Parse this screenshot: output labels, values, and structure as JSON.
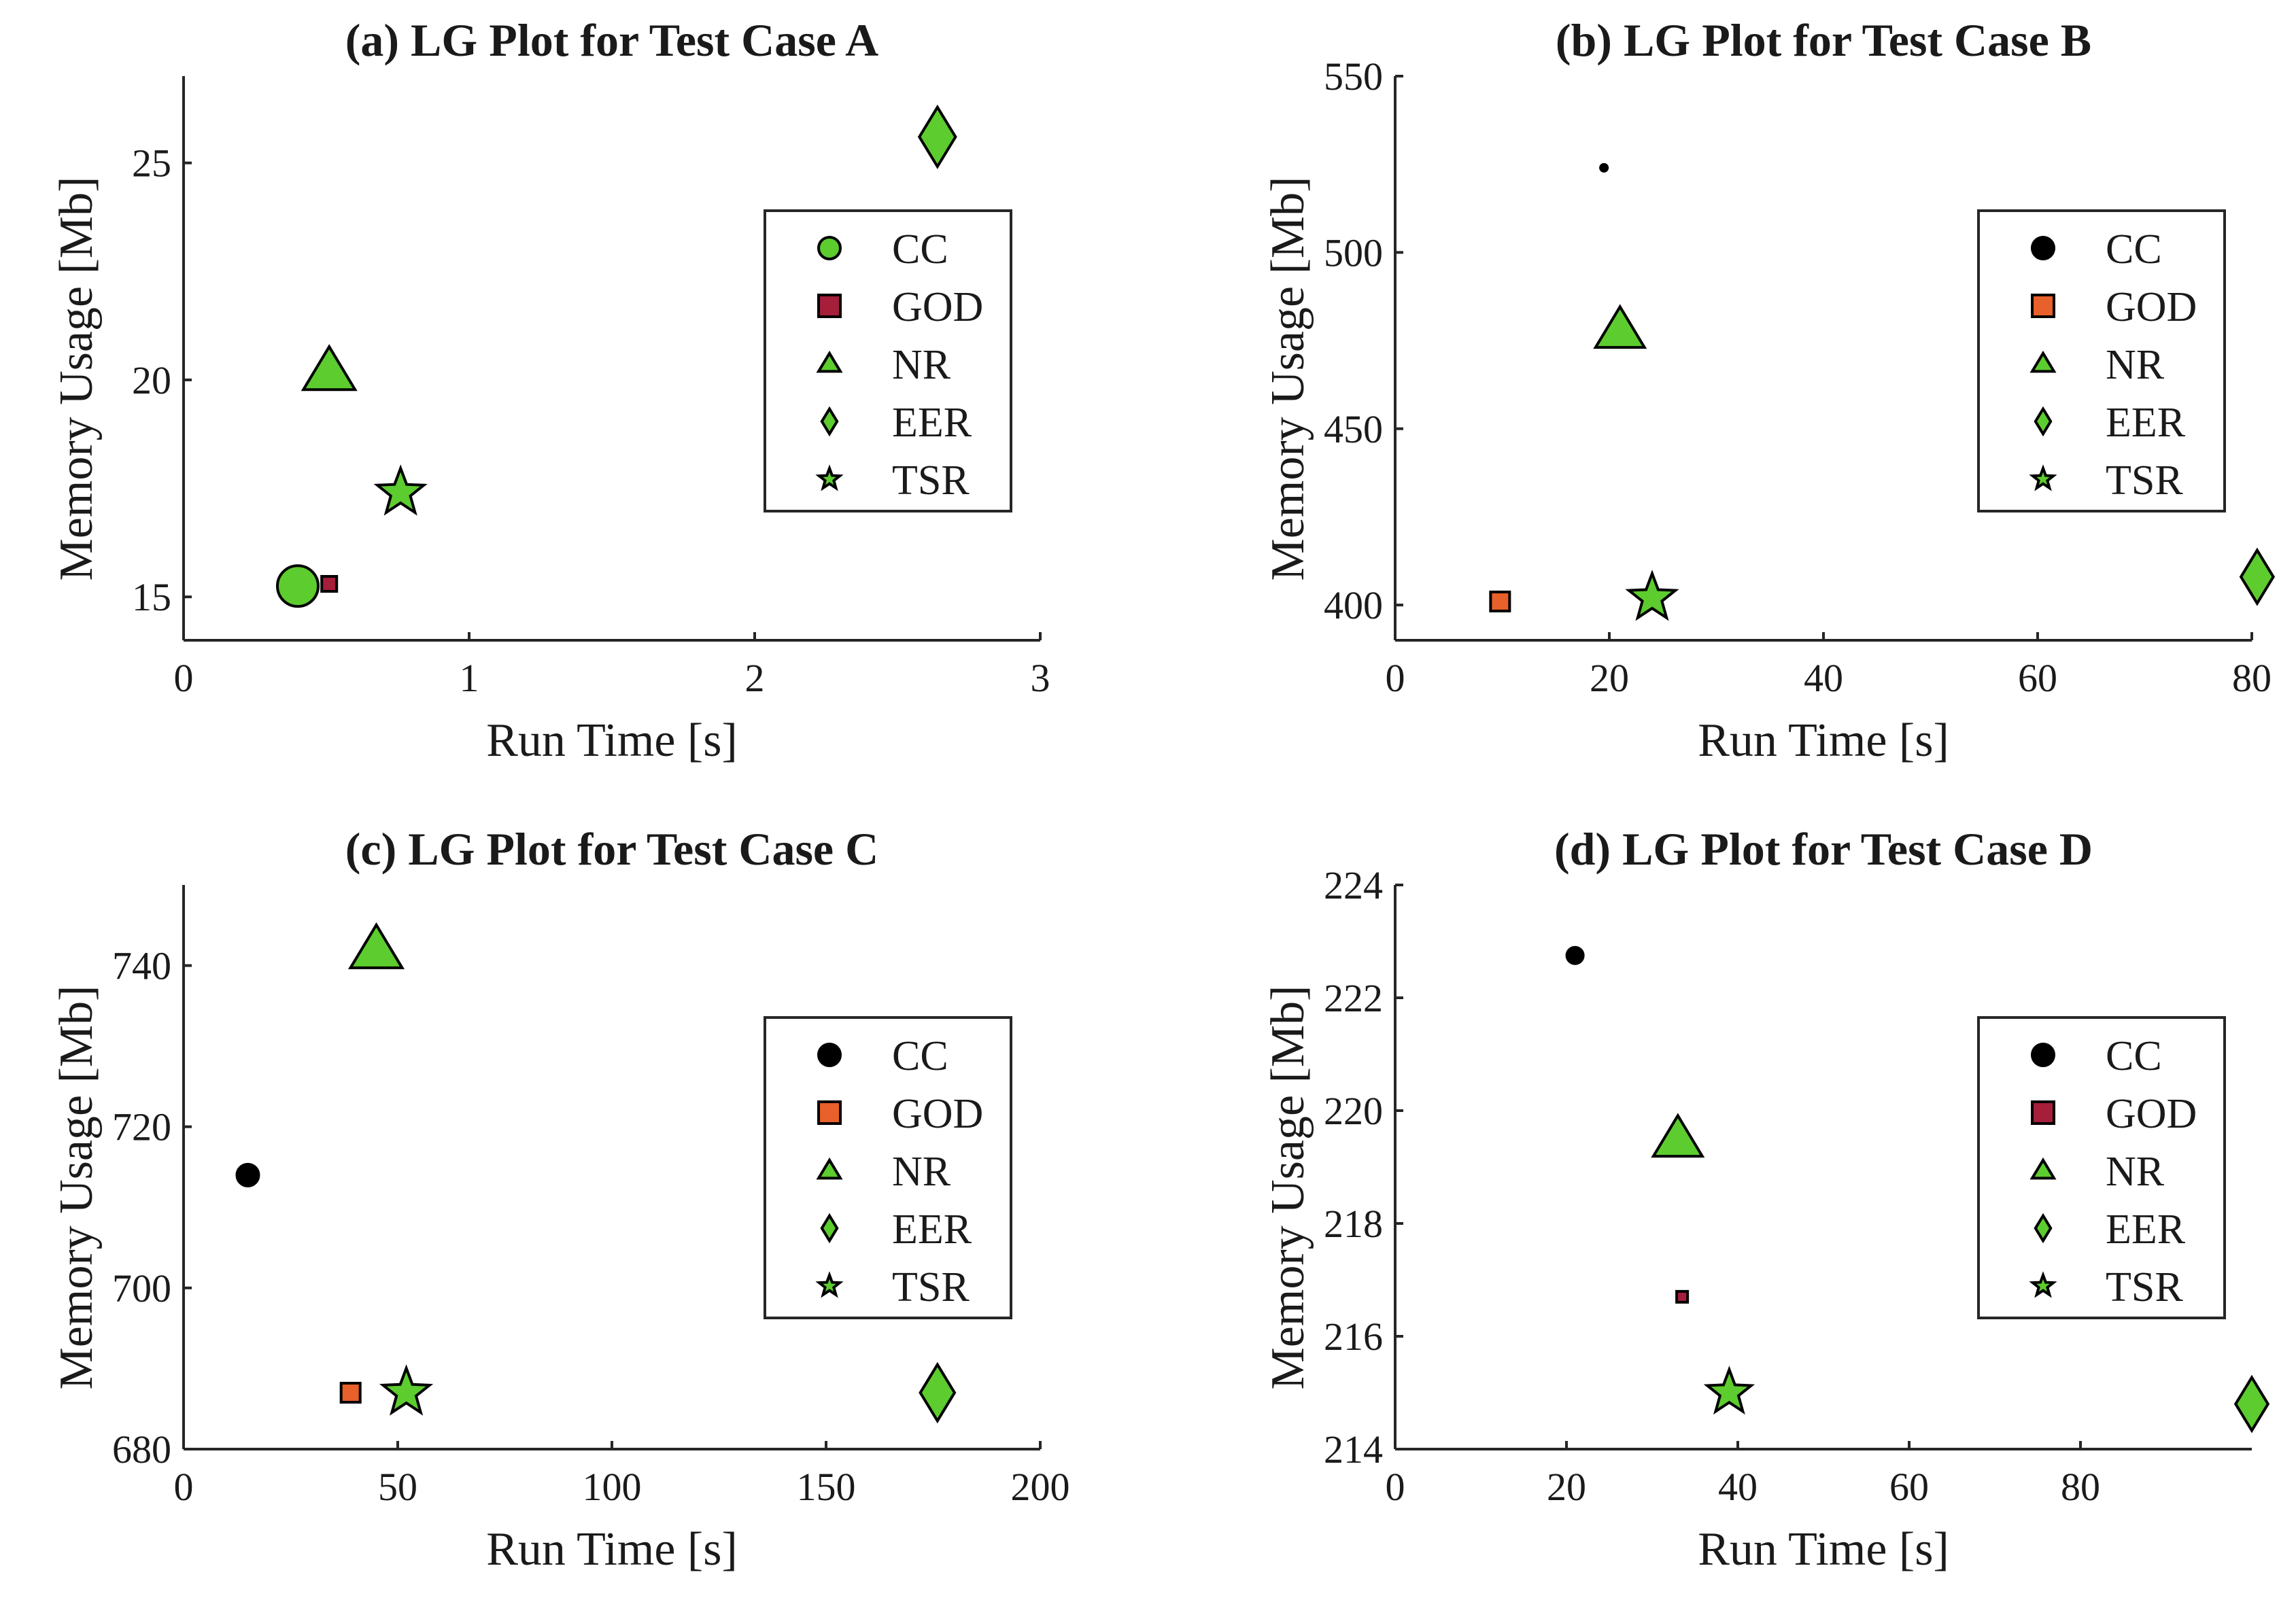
{
  "chart_data": [
    {
      "type": "scatter",
      "title": "(a) LG Plot for Test Case A",
      "xlabel": "Run Time [s]",
      "ylabel": "Memory Usage [Mb]",
      "xlim": [
        0,
        3
      ],
      "ylim": [
        14,
        27
      ],
      "xticks": [
        0,
        1,
        2,
        3
      ],
      "yticks": [
        15,
        20,
        25
      ],
      "legend_position": "top-right",
      "legend": [
        {
          "name": "CC",
          "marker": "circle",
          "color": "#5ccc2e"
        },
        {
          "name": "GOD",
          "marker": "square",
          "color": "#a51e3a"
        },
        {
          "name": "NR",
          "marker": "triangle",
          "color": "#5ccc2e"
        },
        {
          "name": "EER",
          "marker": "diamond",
          "color": "#5ccc2e"
        },
        {
          "name": "TSR",
          "marker": "star",
          "color": "#5ccc2e"
        }
      ],
      "series": [
        {
          "name": "GOD",
          "x": 0.51,
          "y": 15.3,
          "size": 11
        },
        {
          "name": "CC",
          "x": 0.4,
          "y": 15.25,
          "size": 30
        },
        {
          "name": "NR",
          "x": 0.51,
          "y": 20.2,
          "size": 38
        },
        {
          "name": "EER",
          "x": 2.64,
          "y": 25.6,
          "size": 38
        },
        {
          "name": "TSR",
          "x": 0.76,
          "y": 17.4,
          "size": 36
        }
      ]
    },
    {
      "type": "scatter",
      "title": "(b) LG Plot for Test Case B",
      "xlabel": "Run Time [s]",
      "ylabel": "Memory Usage [Mb]",
      "xlim": [
        0,
        80
      ],
      "ylim": [
        390,
        550
      ],
      "xticks": [
        0,
        20,
        40,
        60,
        80
      ],
      "yticks": [
        400,
        450,
        500,
        550
      ],
      "legend_position": "top-right",
      "legend": [
        {
          "name": "CC",
          "marker": "circle",
          "color": "#000000"
        },
        {
          "name": "GOD",
          "marker": "square",
          "color": "#e8602a"
        },
        {
          "name": "NR",
          "marker": "triangle",
          "color": "#5ccc2e"
        },
        {
          "name": "EER",
          "marker": "diamond",
          "color": "#5ccc2e"
        },
        {
          "name": "TSR",
          "marker": "star",
          "color": "#5ccc2e"
        }
      ],
      "series": [
        {
          "name": "CC",
          "x": 19.5,
          "y": 524,
          "size": 5
        },
        {
          "name": "GOD",
          "x": 9.8,
          "y": 401,
          "size": 14
        },
        {
          "name": "NR",
          "x": 21,
          "y": 478,
          "size": 36
        },
        {
          "name": "EER",
          "x": 80.5,
          "y": 408,
          "size": 34
        },
        {
          "name": "TSR",
          "x": 24,
          "y": 402,
          "size": 36
        }
      ]
    },
    {
      "type": "scatter",
      "title": "(c) LG Plot for Test Case C",
      "xlabel": "Run Time [s]",
      "ylabel": "Memory Usage [Mb]",
      "xlim": [
        0,
        200
      ],
      "ylim": [
        680,
        750
      ],
      "xticks": [
        0,
        50,
        100,
        150,
        200
      ],
      "yticks": [
        680,
        700,
        720,
        740
      ],
      "legend_position": "top-right",
      "legend": [
        {
          "name": "CC",
          "marker": "circle",
          "color": "#000000"
        },
        {
          "name": "GOD",
          "marker": "square",
          "color": "#e8602a"
        },
        {
          "name": "NR",
          "marker": "triangle",
          "color": "#5ccc2e"
        },
        {
          "name": "EER",
          "marker": "diamond",
          "color": "#5ccc2e"
        },
        {
          "name": "TSR",
          "marker": "star",
          "color": "#5ccc2e"
        }
      ],
      "series": [
        {
          "name": "CC",
          "x": 15,
          "y": 714,
          "size": 16
        },
        {
          "name": "GOD",
          "x": 39,
          "y": 687,
          "size": 14
        },
        {
          "name": "NR",
          "x": 45,
          "y": 742,
          "size": 38
        },
        {
          "name": "EER",
          "x": 176,
          "y": 687,
          "size": 36
        },
        {
          "name": "TSR",
          "x": 52,
          "y": 687,
          "size": 36
        }
      ]
    },
    {
      "type": "scatter",
      "title": "(d) LG Plot for Test Case D",
      "xlabel": "Run Time [s]",
      "ylabel": "Memory Usage [Mb]",
      "xlim": [
        0,
        100
      ],
      "ylim": [
        214,
        224
      ],
      "xticks": [
        0,
        20,
        40,
        60,
        80
      ],
      "yticks": [
        214,
        216,
        218,
        220,
        222,
        224
      ],
      "legend_position": "top-right",
      "legend": [
        {
          "name": "CC",
          "marker": "circle",
          "color": "#000000"
        },
        {
          "name": "GOD",
          "marker": "square",
          "color": "#a51e3a"
        },
        {
          "name": "NR",
          "marker": "triangle",
          "color": "#5ccc2e"
        },
        {
          "name": "EER",
          "marker": "diamond",
          "color": "#5ccc2e"
        },
        {
          "name": "TSR",
          "marker": "star",
          "color": "#5ccc2e"
        }
      ],
      "series": [
        {
          "name": "CC",
          "x": 21,
          "y": 222.75,
          "size": 12
        },
        {
          "name": "GOD",
          "x": 33.5,
          "y": 216.7,
          "size": 8
        },
        {
          "name": "NR",
          "x": 33,
          "y": 219.5,
          "size": 36
        },
        {
          "name": "EER",
          "x": 100,
          "y": 214.8,
          "size": 34
        },
        {
          "name": "TSR",
          "x": 39,
          "y": 215,
          "size": 34
        }
      ]
    }
  ]
}
